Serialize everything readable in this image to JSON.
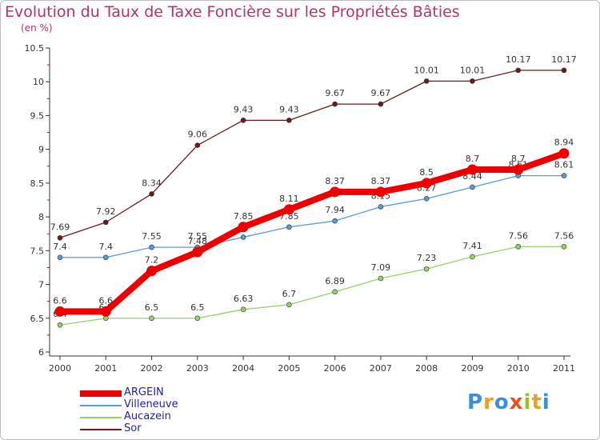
{
  "chart_data": {
    "type": "line",
    "title": "Evolution du Taux de Taxe Foncière sur les Propriétés Bâties",
    "subtitle": "(en %)",
    "xlabel": "",
    "ylabel": "",
    "ylim": [
      6,
      10.5
    ],
    "yticks": [
      "6",
      "6.5",
      "7",
      "7.5",
      "8",
      "8.5",
      "9",
      "9.5",
      "10",
      "10.5"
    ],
    "categories": [
      "2000",
      "2001",
      "2002",
      "2003",
      "2004",
      "2005",
      "2006",
      "2007",
      "2008",
      "2009",
      "2010",
      "2011"
    ],
    "series": [
      {
        "name": "Sor",
        "color": "#6b1a1a",
        "values": [
          7.69,
          7.92,
          8.34,
          9.06,
          9.43,
          9.43,
          9.67,
          9.67,
          10.01,
          10.01,
          10.17,
          10.17
        ],
        "labels": [
          "7.69",
          "7.92",
          "8.34",
          "9.06",
          "9.43",
          "9.43",
          "9.67",
          "9.67",
          "10.01",
          "10.01",
          "10.17",
          "10.17"
        ]
      },
      {
        "name": "Villeneuve",
        "color": "#5b9bd5",
        "values": [
          7.4,
          7.4,
          7.55,
          7.55,
          7.7,
          7.85,
          7.94,
          8.15,
          8.27,
          8.44,
          8.61,
          8.61
        ],
        "labels": [
          "7.4",
          "7.4",
          "7.55",
          "7.55",
          "",
          "7.85",
          "7.94",
          "8.15",
          "8.27",
          "8.44",
          "8.61",
          "8.61"
        ]
      },
      {
        "name": "Aucazein",
        "color": "#99d066",
        "values": [
          6.4,
          6.5,
          6.5,
          6.5,
          6.63,
          6.7,
          6.89,
          7.09,
          7.23,
          7.41,
          7.56,
          7.56
        ],
        "labels": [
          "6.4",
          "6.5",
          "6.5",
          "6.5",
          "6.63",
          "6.7",
          "6.89",
          "7.09",
          "7.23",
          "7.41",
          "7.56",
          "7.56"
        ]
      },
      {
        "name": "ARGEIN",
        "color": "#ee0000",
        "values": [
          6.6,
          6.6,
          7.2,
          7.48,
          7.85,
          8.11,
          8.37,
          8.37,
          8.5,
          8.7,
          8.7,
          8.94
        ],
        "labels": [
          "6.6",
          "6.6",
          "7.2",
          "7.48",
          "7.85",
          "8.11",
          "8.37",
          "8.37",
          "8.5",
          "8.7",
          "8.7",
          "8.94"
        ]
      }
    ],
    "legend": [
      {
        "name": "ARGEIN",
        "color": "#ee0000"
      },
      {
        "name": "Villeneuve",
        "color": "#5b9bd5"
      },
      {
        "name": "Aucazein",
        "color": "#99d066"
      },
      {
        "name": "Sor",
        "color": "#6b1a1a"
      }
    ],
    "legend_position": "bottom-left",
    "grid": false
  },
  "logo": {
    "letters": [
      "P",
      "r",
      "o",
      "x",
      "i",
      "t",
      "i"
    ],
    "colors": [
      "#3a8fd8",
      "#f0a020",
      "#3a8fd8",
      "#e85020",
      "#98c020",
      "#f0a020",
      "#3a8fd8"
    ]
  }
}
